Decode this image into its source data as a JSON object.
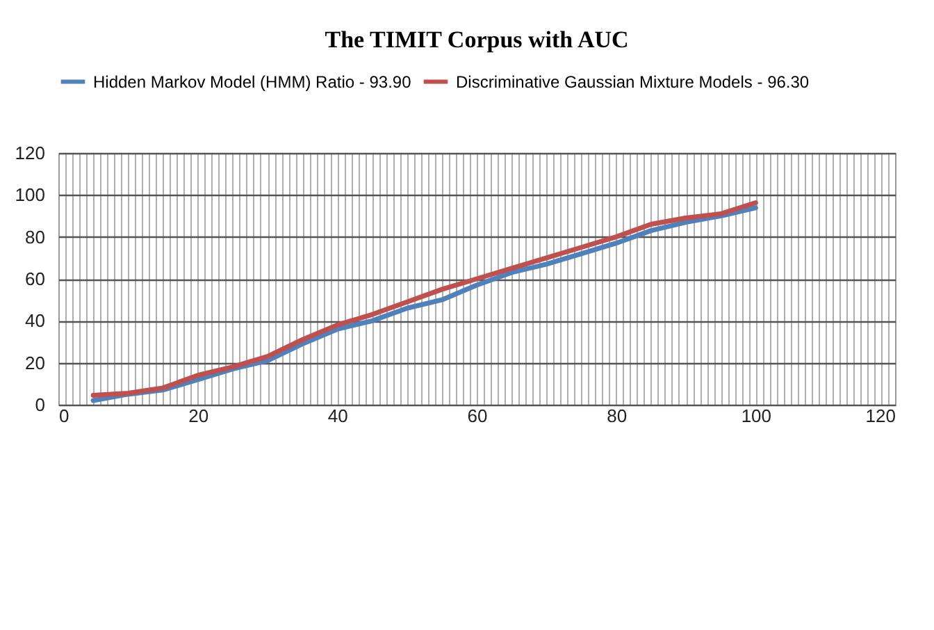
{
  "chart_data": {
    "type": "line",
    "title": "The TIMIT Corpus with AUC",
    "x": [
      5,
      10,
      15,
      20,
      25,
      30,
      35,
      40,
      45,
      50,
      55,
      60,
      65,
      70,
      75,
      80,
      85,
      90,
      95,
      100
    ],
    "series": [
      {
        "name": "Hidden Markov Model (HMM) Ratio - 93.90",
        "color": "#4f81bd",
        "values": [
          2,
          5,
          7,
          12,
          17,
          21,
          29,
          36,
          40,
          46,
          50,
          57,
          63,
          67,
          72,
          77,
          83,
          87,
          90,
          93.9
        ]
      },
      {
        "name": "Discriminative Gaussian Mixture Models - 96.30",
        "color": "#c0504d",
        "values": [
          4.5,
          5.5,
          8,
          14,
          18,
          23,
          31,
          38,
          43,
          49,
          55,
          60,
          65,
          70,
          75,
          80,
          86,
          89,
          91,
          96.3
        ]
      }
    ],
    "xlim": [
      0,
      120
    ],
    "xticks": [
      0,
      20,
      40,
      60,
      80,
      100,
      120
    ],
    "ylim": [
      0,
      120
    ],
    "yticks": [
      0,
      20,
      40,
      60,
      80,
      100,
      120
    ],
    "grid": true,
    "legend": "top",
    "marker": "none",
    "line_style": "solid"
  }
}
